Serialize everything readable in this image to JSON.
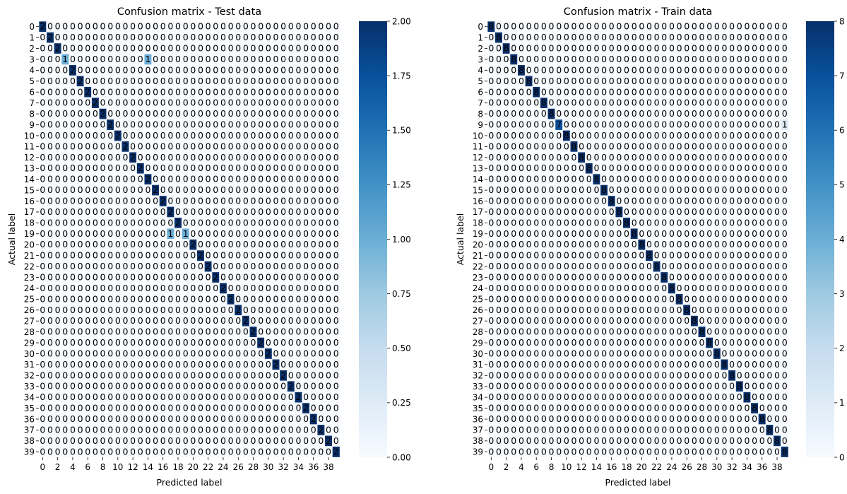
{
  "chart_data": [
    {
      "type": "heatmap",
      "title": "Confusion matrix - Test data",
      "xlabel": "Predicted label",
      "ylabel": "Actual label",
      "n_classes": 40,
      "row_labels": [
        "0",
        "1",
        "2",
        "3",
        "4",
        "5",
        "6",
        "7",
        "8",
        "9",
        "10",
        "11",
        "12",
        "13",
        "14",
        "15",
        "16",
        "17",
        "18",
        "19",
        "20",
        "21",
        "22",
        "23",
        "24",
        "25",
        "26",
        "27",
        "28",
        "29",
        "30",
        "31",
        "32",
        "33",
        "34",
        "35",
        "36",
        "37",
        "38",
        "39"
      ],
      "x_tick_labels": [
        "0",
        "2",
        "4",
        "6",
        "8",
        "10",
        "12",
        "14",
        "16",
        "18",
        "20",
        "22",
        "24",
        "26",
        "28",
        "30",
        "32",
        "34",
        "36",
        "38"
      ],
      "diagonal_value": 2,
      "off_diagonal_value": 0,
      "overrides": [
        [
          3,
          3,
          1
        ],
        [
          3,
          14,
          1
        ],
        [
          19,
          17,
          1
        ],
        [
          19,
          18,
          0
        ],
        [
          19,
          19,
          1
        ]
      ],
      "colorbar": {
        "min": 0,
        "max": 2,
        "ticks": [
          "0.00",
          "0.25",
          "0.50",
          "0.75",
          "1.00",
          "1.25",
          "1.50",
          "1.75",
          "2.00"
        ],
        "colormap": "Blues"
      }
    },
    {
      "type": "heatmap",
      "title": "Confusion matrix - Train data",
      "xlabel": "Predicted label",
      "ylabel": "Actual label",
      "n_classes": 40,
      "row_labels": [
        "0",
        "1",
        "2",
        "3",
        "4",
        "5",
        "6",
        "7",
        "8",
        "9",
        "10",
        "11",
        "12",
        "13",
        "14",
        "15",
        "16",
        "17",
        "18",
        "19",
        "20",
        "21",
        "22",
        "23",
        "24",
        "25",
        "26",
        "27",
        "28",
        "29",
        "30",
        "31",
        "32",
        "33",
        "34",
        "35",
        "36",
        "37",
        "38",
        "39"
      ],
      "x_tick_labels": [
        "0",
        "2",
        "4",
        "6",
        "8",
        "10",
        "12",
        "14",
        "16",
        "18",
        "20",
        "22",
        "24",
        "26",
        "28",
        "30",
        "32",
        "34",
        "36",
        "38"
      ],
      "diagonal_value": 8,
      "off_diagonal_value": 0,
      "overrides": [
        [
          9,
          9,
          7
        ],
        [
          9,
          39,
          1
        ]
      ],
      "colorbar": {
        "min": 0,
        "max": 8,
        "ticks": [
          "0",
          "1",
          "2",
          "3",
          "4",
          "5",
          "6",
          "7",
          "8"
        ],
        "colormap": "Blues"
      }
    }
  ]
}
